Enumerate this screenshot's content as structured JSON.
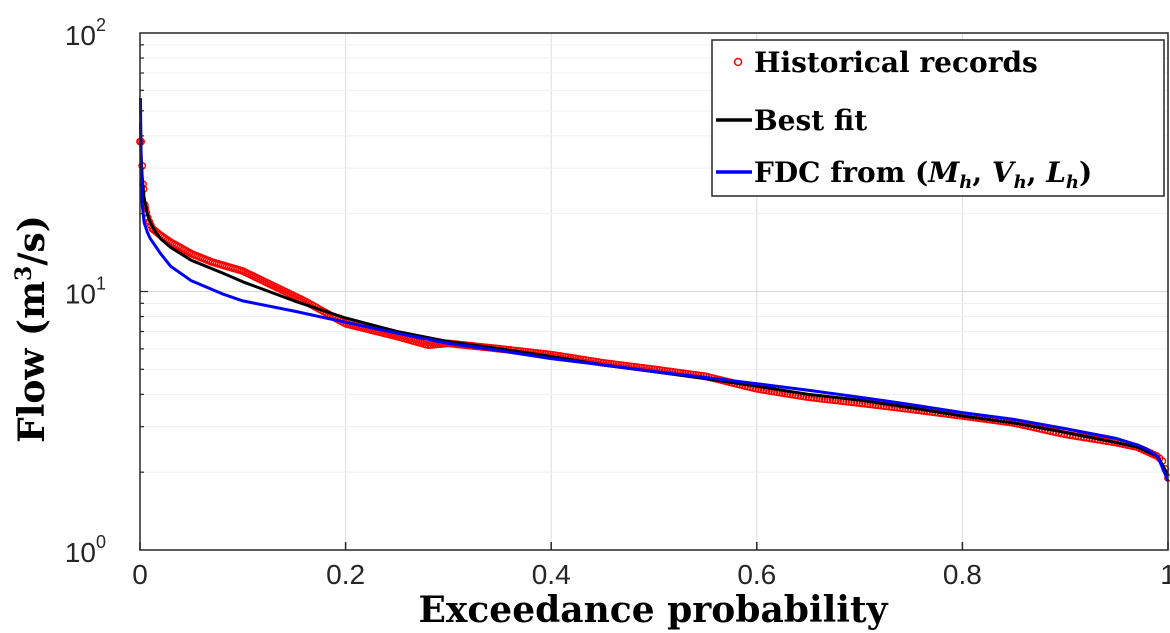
{
  "chart_data": {
    "type": "line",
    "title": "",
    "xlabel": "Exceedance probability",
    "ylabel_main": "Flow (m",
    "ylabel_sup": "3",
    "ylabel_end": "/s)",
    "x_scale": "linear",
    "y_scale": "log",
    "xlim": [
      0,
      1
    ],
    "ylim": [
      1,
      100
    ],
    "grid": true,
    "legend_position": "top-right",
    "x_ticks": [
      "0",
      "0.2",
      "0.4",
      "0.6",
      "0.8",
      "1"
    ],
    "y_ticks": [
      {
        "base": "10",
        "exp": "0"
      },
      {
        "base": "10",
        "exp": "1"
      },
      {
        "base": "10",
        "exp": "2"
      }
    ],
    "series": [
      {
        "name": "Historical records",
        "style": "markers",
        "color": "#ff0000",
        "x": [
          0.001,
          0.003,
          0.005,
          0.008,
          0.012,
          0.02,
          0.03,
          0.05,
          0.07,
          0.1,
          0.13,
          0.16,
          0.2,
          0.25,
          0.28,
          0.3,
          0.35,
          0.4,
          0.45,
          0.5,
          0.55,
          0.6,
          0.65,
          0.7,
          0.75,
          0.8,
          0.85,
          0.9,
          0.95,
          0.97,
          0.98,
          0.99,
          0.995,
          1.0
        ],
        "y": [
          38,
          26,
          21,
          19,
          17.5,
          16.5,
          15.5,
          14,
          13,
          12,
          10.5,
          9.2,
          7.5,
          6.7,
          6.2,
          6.3,
          6.0,
          5.7,
          5.3,
          5.0,
          4.7,
          4.2,
          3.9,
          3.7,
          3.5,
          3.3,
          3.1,
          2.8,
          2.6,
          2.5,
          2.4,
          2.3,
          2.2,
          1.9
        ]
      },
      {
        "name": "Best fit",
        "style": "line",
        "color": "#000000",
        "x": [
          0.0005,
          0.001,
          0.002,
          0.004,
          0.007,
          0.01,
          0.015,
          0.02,
          0.03,
          0.05,
          0.08,
          0.1,
          0.15,
          0.2,
          0.25,
          0.3,
          0.35,
          0.4,
          0.45,
          0.5,
          0.55,
          0.6,
          0.65,
          0.7,
          0.75,
          0.8,
          0.85,
          0.9,
          0.95,
          0.97,
          0.98,
          0.99,
          1.0
        ],
        "y": [
          45,
          35,
          28,
          23,
          20,
          18.5,
          17,
          16,
          14.8,
          13.2,
          11.8,
          10.9,
          9.2,
          7.9,
          7.0,
          6.4,
          6.0,
          5.6,
          5.2,
          4.9,
          4.6,
          4.3,
          4.0,
          3.8,
          3.55,
          3.3,
          3.1,
          2.85,
          2.6,
          2.5,
          2.4,
          2.3,
          1.95
        ]
      },
      {
        "name": "FDC from",
        "name_math": "(M_h, V_h, L_h)",
        "style": "line",
        "color": "#0000ff",
        "x": [
          0.0005,
          0.001,
          0.002,
          0.004,
          0.007,
          0.01,
          0.015,
          0.02,
          0.03,
          0.05,
          0.08,
          0.1,
          0.15,
          0.2,
          0.25,
          0.3,
          0.35,
          0.4,
          0.45,
          0.5,
          0.55,
          0.6,
          0.65,
          0.7,
          0.75,
          0.8,
          0.85,
          0.9,
          0.95,
          0.97,
          0.98,
          0.99,
          1.0
        ],
        "y": [
          56,
          32,
          22,
          18.5,
          17,
          16,
          15,
          14,
          12.5,
          11,
          9.8,
          9.2,
          8.4,
          7.6,
          6.9,
          6.3,
          5.9,
          5.5,
          5.2,
          4.9,
          4.65,
          4.4,
          4.15,
          3.9,
          3.65,
          3.4,
          3.2,
          2.95,
          2.7,
          2.55,
          2.45,
          2.3,
          1.85
        ]
      }
    ]
  }
}
